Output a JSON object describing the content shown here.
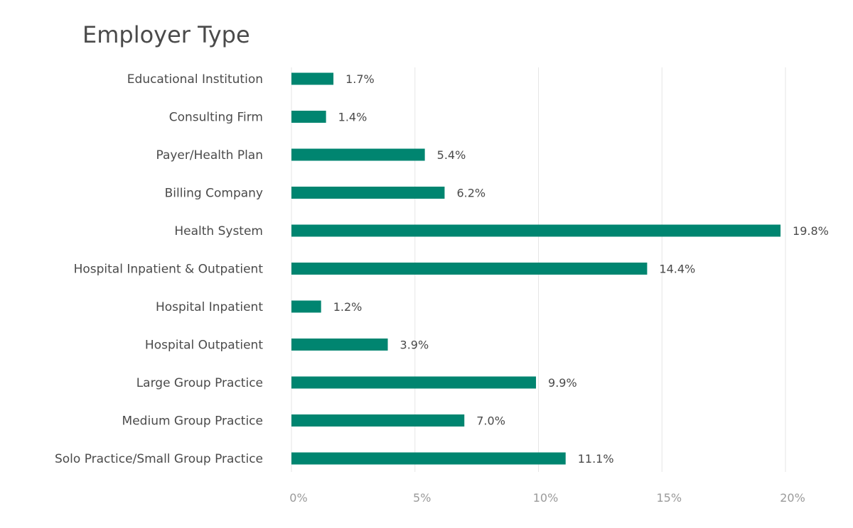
{
  "chart_data": {
    "type": "bar",
    "orientation": "horizontal",
    "title": "Employer Type",
    "categories": [
      "Educational Institution",
      "Consulting Firm",
      "Payer/Health Plan",
      "Billing Company",
      "Health System",
      "Hospital Inpatient & Outpatient",
      "Hospital Inpatient",
      "Hospital Outpatient",
      "Large Group Practice",
      "Medium Group Practice",
      "Solo Practice/Small Group Practice"
    ],
    "values": [
      1.7,
      1.4,
      5.4,
      6.2,
      19.8,
      14.4,
      1.2,
      3.9,
      9.9,
      7.0,
      11.1
    ],
    "value_labels": [
      "1.7%",
      "1.4%",
      "5.4%",
      "6.2%",
      "19.8%",
      "14.4%",
      "1.2%",
      "3.9%",
      "9.9%",
      "7.0%",
      "11.1%"
    ],
    "xlim": [
      0,
      20
    ],
    "xticks": [
      0,
      5,
      10,
      15,
      20
    ],
    "xtick_labels": [
      "0%",
      "5%",
      "10%",
      "15%",
      "20%"
    ],
    "xlabel": "",
    "ylabel": "",
    "grid": true,
    "legend": "none",
    "bar_color": "#008570"
  }
}
